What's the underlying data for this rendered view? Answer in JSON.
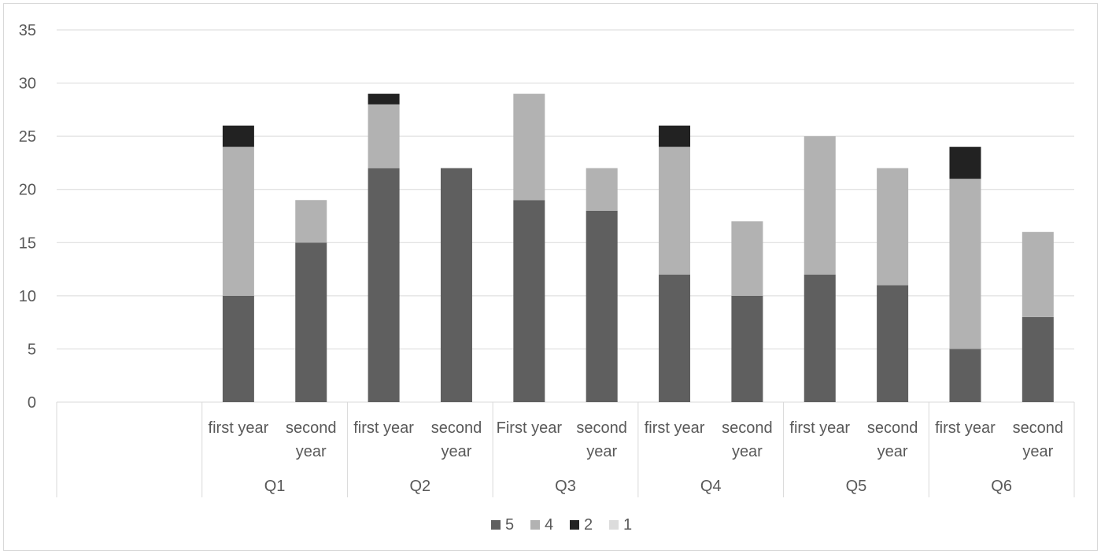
{
  "chart_data": {
    "type": "bar",
    "stacked": true,
    "title": "",
    "xlabel": "",
    "ylabel": "",
    "ylim": [
      0,
      35
    ],
    "yticks": [
      0,
      5,
      10,
      15,
      20,
      25,
      30,
      35
    ],
    "grid": true,
    "legend_position": "bottom",
    "groups": [
      "Q1",
      "Q2",
      "Q3",
      "Q4",
      "Q5",
      "Q6"
    ],
    "categories": [
      "first year",
      "second year",
      "first year",
      "second year",
      "First year",
      "second year",
      "first year",
      "second year",
      "first year",
      "second year",
      "first year",
      "second year"
    ],
    "series": [
      {
        "name": "5",
        "color": "#5f5f5f",
        "values": [
          10,
          15,
          22,
          22,
          19,
          18,
          12,
          10,
          12,
          11,
          5,
          8
        ]
      },
      {
        "name": "4",
        "color": "#b2b2b2",
        "values": [
          14,
          4,
          6,
          0,
          10,
          4,
          12,
          7,
          13,
          11,
          16,
          8
        ]
      },
      {
        "name": "2",
        "color": "#222222",
        "values": [
          2,
          0,
          1,
          0,
          0,
          0,
          2,
          0,
          0,
          0,
          3,
          0
        ]
      },
      {
        "name": "1",
        "color": "#dcdcdc",
        "values": [
          0,
          0,
          0,
          0,
          0,
          0,
          0,
          0,
          0,
          0,
          0,
          0
        ]
      }
    ]
  }
}
